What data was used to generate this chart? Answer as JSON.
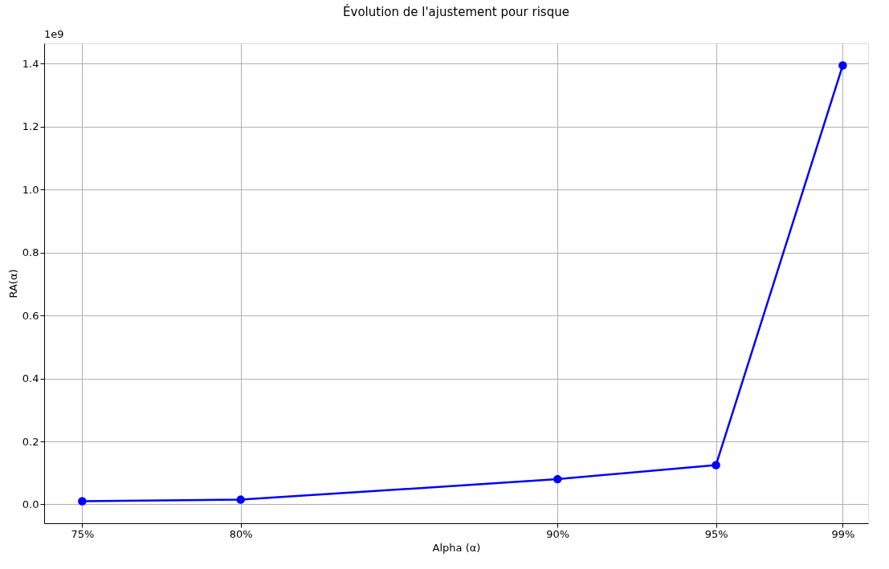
{
  "chart_data": {
    "type": "line",
    "title": "Évolution de l'ajustement pour risque",
    "xlabel": "Alpha (α)",
    "ylabel": "RA(α)",
    "x": [
      75,
      80,
      90,
      95,
      99
    ],
    "series": [
      {
        "color": "#0000ff",
        "values": [
          0.01,
          0.015,
          0.08,
          0.125,
          1.395
        ]
      }
    ],
    "xlim": [
      73.8,
      99.8
    ],
    "xticks": [
      {
        "value": 75,
        "label": "75%"
      },
      {
        "value": 80,
        "label": "80%"
      },
      {
        "value": 90,
        "label": "90%"
      },
      {
        "value": 95,
        "label": "95%"
      },
      {
        "value": 99,
        "label": "99%"
      }
    ],
    "ylim": [
      -0.06,
      1.465
    ],
    "yticks": [
      {
        "value": 0,
        "label": "0.0"
      },
      0.2,
      0.4,
      0.6,
      0.8,
      {
        "value": 1,
        "label": "1.0"
      },
      1.2,
      1.4
    ],
    "annotations": [
      "1e9"
    ],
    "grid": true,
    "marker": "circle",
    "line_style": "solid"
  }
}
